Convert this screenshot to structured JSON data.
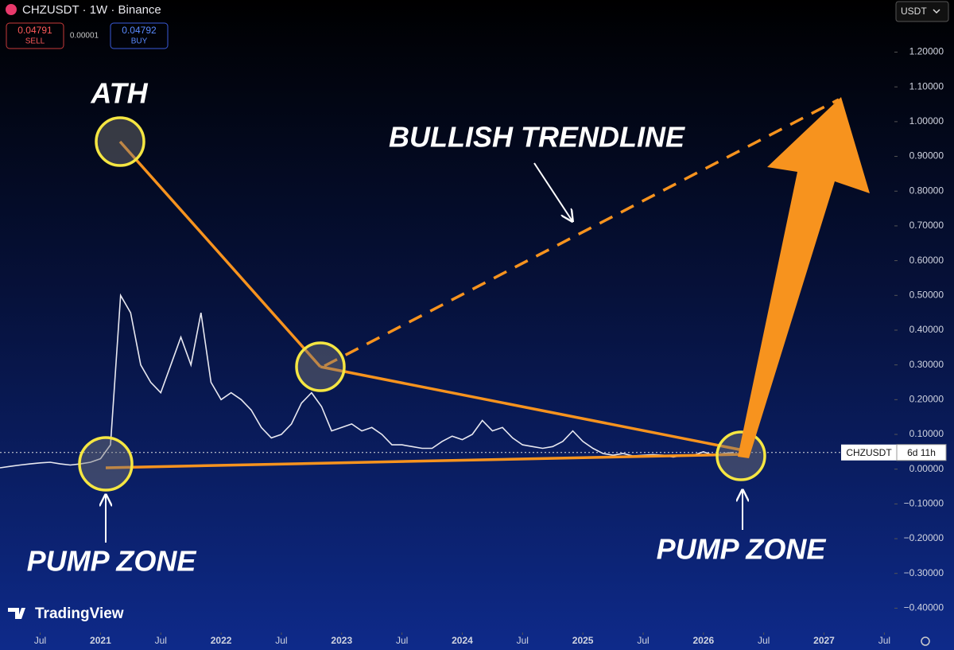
{
  "toolbar": {
    "symbol": "CHZUSDT · 1W · Binance",
    "sell_price": "0.04791",
    "sell": "SELL",
    "spread": "0.00001",
    "buy_price": "0.04792",
    "buy": "BUY",
    "currency": "USDT"
  },
  "chart_data": {
    "type": "line",
    "x": [
      "2020-03",
      "2020-04",
      "2020-05",
      "2020-06",
      "2020-07",
      "2020-08",
      "2020-09",
      "2020-10",
      "2020-11",
      "2020-12",
      "2021-01",
      "2021-02",
      "2021-03",
      "2021-04",
      "2021-05",
      "2021-06",
      "2021-07",
      "2021-08",
      "2021-09",
      "2021-10",
      "2021-11",
      "2021-12",
      "2022-01",
      "2022-02",
      "2022-03",
      "2022-04",
      "2022-05",
      "2022-06",
      "2022-07",
      "2022-08",
      "2022-09",
      "2022-10",
      "2022-11",
      "2022-12",
      "2023-01",
      "2023-02",
      "2023-03",
      "2023-04",
      "2023-05",
      "2023-06",
      "2023-07",
      "2023-08",
      "2023-09",
      "2023-10",
      "2023-11",
      "2023-12",
      "2024-01",
      "2024-02",
      "2024-03",
      "2024-04",
      "2024-05",
      "2024-06",
      "2024-07",
      "2024-08",
      "2024-09",
      "2024-10",
      "2024-11",
      "2024-12",
      "2025-01",
      "2025-02",
      "2025-03",
      "2025-04",
      "2025-05",
      "2025-06",
      "2025-07",
      "2025-08",
      "2025-09",
      "2025-10",
      "2025-11",
      "2025-12",
      "2026-01",
      "2026-02",
      "2026-03",
      "2026-04"
    ],
    "series": [
      {
        "name": "CHZUSDT",
        "color": "#e8e8f0",
        "values": [
          0.004,
          0.008,
          0.012,
          0.015,
          0.018,
          0.02,
          0.015,
          0.012,
          0.015,
          0.02,
          0.03,
          0.07,
          0.5,
          0.45,
          0.3,
          0.25,
          0.22,
          0.3,
          0.38,
          0.3,
          0.45,
          0.25,
          0.2,
          0.22,
          0.2,
          0.17,
          0.12,
          0.09,
          0.1,
          0.13,
          0.19,
          0.22,
          0.18,
          0.11,
          0.12,
          0.13,
          0.11,
          0.12,
          0.1,
          0.07,
          0.07,
          0.065,
          0.06,
          0.06,
          0.08,
          0.095,
          0.085,
          0.1,
          0.14,
          0.11,
          0.12,
          0.09,
          0.07,
          0.065,
          0.06,
          0.065,
          0.08,
          0.11,
          0.08,
          0.06,
          0.045,
          0.04,
          0.045,
          0.038,
          0.04,
          0.042,
          0.04,
          0.035,
          0.04,
          0.04,
          0.05,
          0.04,
          0.045,
          0.048
        ]
      }
    ],
    "countdown": "6d 11h",
    "xlim": [
      "2020-03",
      "2027-08"
    ],
    "xticks": [
      {
        "value": "2020-07",
        "label": "Jul"
      },
      {
        "value": "2021-01",
        "label": "2021"
      },
      {
        "value": "2021-07",
        "label": "Jul"
      },
      {
        "value": "2022-01",
        "label": "2022"
      },
      {
        "value": "2022-07",
        "label": "Jul"
      },
      {
        "value": "2023-01",
        "label": "2023"
      },
      {
        "value": "2023-07",
        "label": "Jul"
      },
      {
        "value": "2024-01",
        "label": "2024"
      },
      {
        "value": "2024-07",
        "label": "Jul"
      },
      {
        "value": "2025-01",
        "label": "2025"
      },
      {
        "value": "2025-07",
        "label": "Jul"
      },
      {
        "value": "2026-01",
        "label": "2026"
      },
      {
        "value": "2026-07",
        "label": "Jul"
      },
      {
        "value": "2027-01",
        "label": "2027"
      },
      {
        "value": "2027-07",
        "label": "Jul"
      }
    ],
    "ylim": [
      -0.47,
      1.35
    ],
    "yticks": [
      {
        "value": 1.2,
        "label": "1.20000"
      },
      {
        "value": 1.1,
        "label": "1.10000"
      },
      {
        "value": 1.0,
        "label": "1.00000"
      },
      {
        "value": 0.9,
        "label": "0.90000"
      },
      {
        "value": 0.8,
        "label": "0.80000"
      },
      {
        "value": 0.7,
        "label": "0.70000"
      },
      {
        "value": 0.6,
        "label": "0.60000"
      },
      {
        "value": 0.5,
        "label": "0.50000"
      },
      {
        "value": 0.4,
        "label": "0.40000"
      },
      {
        "value": 0.3,
        "label": "0.30000"
      },
      {
        "value": 0.2,
        "label": "0.20000"
      },
      {
        "value": 0.1,
        "label": "0.10000"
      },
      {
        "value": 0,
        "label": "0.00000"
      },
      {
        "value": -0.1,
        "label": "−0.10000"
      },
      {
        "value": -0.2,
        "label": "−0.20000"
      },
      {
        "value": -0.3,
        "label": "−0.30000"
      },
      {
        "value": -0.4,
        "label": "−0.40000"
      }
    ],
    "grid": false,
    "annotations": [
      "ATH",
      "BULLISH TRENDLINE",
      "PUMP ZONE",
      "PUMP ZONE"
    ]
  },
  "logo": "TradingView"
}
